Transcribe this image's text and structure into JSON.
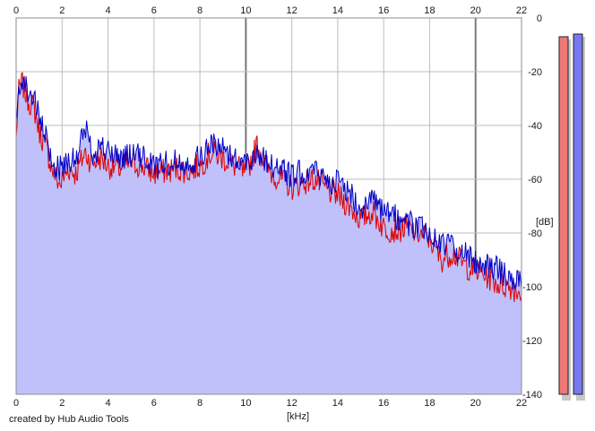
{
  "caption": "created by Hub Audio Tools",
  "chart_data": {
    "type": "line",
    "title": "",
    "xlabel": "[kHz]",
    "ylabel": "[dB]",
    "xlim": [
      0,
      22
    ],
    "ylim": [
      -140,
      0
    ],
    "x_ticks": [
      0,
      2,
      4,
      6,
      8,
      10,
      12,
      14,
      16,
      18,
      20,
      22
    ],
    "y_ticks": [
      0,
      -20,
      -40,
      -60,
      -80,
      -100,
      -120,
      -140
    ],
    "y_tick_labels": [
      "0",
      "-20",
      "-40",
      "-60",
      "-80",
      "-100",
      "-120",
      "-140"
    ],
    "grid": true,
    "area_fill": "#c0c0fa",
    "series": [
      {
        "color": "#e00000",
        "x": [
          0,
          0.1,
          0.25,
          0.5,
          0.8,
          1.0,
          1.3,
          1.6,
          1.9,
          2.3,
          2.6,
          3.0,
          3.3,
          3.7,
          4.0,
          4.5,
          5.0,
          5.5,
          6.0,
          6.5,
          7.0,
          7.5,
          8.0,
          8.5,
          9.0,
          9.5,
          10.0,
          10.5,
          11.0,
          11.5,
          12.0,
          12.5,
          13.0,
          13.5,
          14.0,
          14.5,
          15.0,
          15.5,
          16.0,
          16.5,
          17.0,
          17.5,
          18.0,
          18.5,
          19.0,
          19.5,
          20.0,
          20.5,
          21.0,
          21.5,
          22.0
        ],
        "values": [
          -45,
          -28,
          -24,
          -30,
          -34,
          -42,
          -48,
          -57,
          -62,
          -56,
          -58,
          -50,
          -54,
          -52,
          -55,
          -56,
          -54,
          -55,
          -58,
          -57,
          -56,
          -57,
          -55,
          -50,
          -52,
          -55,
          -58,
          -47,
          -57,
          -60,
          -63,
          -61,
          -60,
          -64,
          -66,
          -70,
          -75,
          -72,
          -78,
          -79,
          -78,
          -80,
          -82,
          -90,
          -87,
          -92,
          -94,
          -96,
          -99,
          -100,
          -102
        ]
      },
      {
        "color": "#0000c8",
        "x": [
          0,
          0.1,
          0.25,
          0.5,
          0.8,
          1.0,
          1.3,
          1.6,
          1.9,
          2.3,
          2.6,
          3.0,
          3.3,
          3.7,
          4.0,
          4.5,
          5.0,
          5.5,
          6.0,
          6.5,
          7.0,
          7.5,
          8.0,
          8.5,
          9.0,
          9.5,
          10.0,
          10.5,
          11.0,
          11.5,
          12.0,
          12.5,
          13.0,
          13.5,
          14.0,
          14.5,
          15.0,
          15.5,
          16.0,
          16.5,
          17.0,
          17.5,
          18.0,
          18.5,
          19.0,
          19.5,
          20.0,
          20.5,
          21.0,
          21.5,
          22.0
        ],
        "values": [
          -42,
          -26,
          -22,
          -27,
          -30,
          -38,
          -45,
          -55,
          -56,
          -52,
          -54,
          -40,
          -50,
          -48,
          -50,
          -52,
          -51,
          -52,
          -55,
          -54,
          -53,
          -54,
          -52,
          -47,
          -48,
          -52,
          -54,
          -50,
          -54,
          -56,
          -59,
          -57,
          -57,
          -60,
          -61,
          -65,
          -70,
          -68,
          -73,
          -74,
          -76,
          -78,
          -80,
          -84,
          -85,
          -88,
          -90,
          -92,
          -94,
          -96,
          -98
        ]
      }
    ],
    "level_meters": [
      {
        "side": "left",
        "color": "#f07878",
        "level_db": -7
      },
      {
        "side": "right",
        "color": "#7878f0",
        "level_db": -6
      }
    ]
  }
}
